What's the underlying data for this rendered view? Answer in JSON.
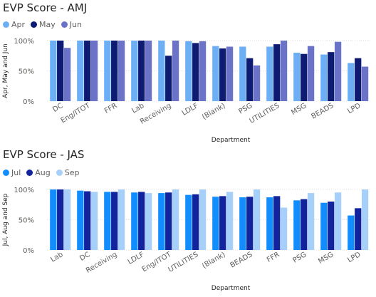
{
  "chart_data": [
    {
      "type": "bar",
      "title": "EVP Score - AMJ",
      "xlabel": "Department",
      "ylabel": "Apr, May and Jun",
      "ylim": [
        0,
        1
      ],
      "yticks": [
        "0%",
        "50%",
        "100%"
      ],
      "categories": [
        "DC",
        "Eng/ITOT",
        "FFR",
        "Lab",
        "Receiving",
        "LDLF",
        "(Blank)",
        "PSG",
        "UTILITIES",
        "MSG",
        "BEADS",
        "LPD"
      ],
      "series": [
        {
          "name": "Apr",
          "color": "#6CAFF5",
          "values": [
            1.0,
            1.0,
            1.0,
            1.0,
            1.0,
            0.99,
            0.91,
            0.9,
            0.9,
            0.8,
            0.77,
            0.63
          ]
        },
        {
          "name": "May",
          "color": "#0D1B73",
          "values": [
            1.0,
            1.0,
            1.0,
            1.0,
            0.75,
            0.96,
            0.87,
            0.71,
            0.94,
            0.78,
            0.81,
            0.71
          ]
        },
        {
          "name": "Jun",
          "color": "#6B73C8",
          "values": [
            0.88,
            1.0,
            1.0,
            1.0,
            1.0,
            0.99,
            0.9,
            0.59,
            1.0,
            0.91,
            0.98,
            0.57
          ]
        }
      ],
      "legend": "top-left",
      "grid": true
    },
    {
      "type": "bar",
      "title": "EVP Score - JAS",
      "xlabel": "Department",
      "ylabel": "Jul, Aug and Sep",
      "ylim": [
        0,
        1
      ],
      "yticks": [
        "0%",
        "50%",
        "100%"
      ],
      "categories": [
        "Lab",
        "DC",
        "Receiving",
        "LDLF",
        "Eng/ITOT",
        "UTILITIES",
        "(Blank)",
        "BEADS",
        "FFR",
        "PSG",
        "MSG",
        "LPD"
      ],
      "series": [
        {
          "name": "Jul",
          "color": "#118DFF",
          "values": [
            1.0,
            0.98,
            0.96,
            0.95,
            0.94,
            0.91,
            0.88,
            0.87,
            0.87,
            0.82,
            0.78,
            0.57
          ]
        },
        {
          "name": "Aug",
          "color": "#12239E",
          "values": [
            1.0,
            0.97,
            0.96,
            0.96,
            0.95,
            0.92,
            0.89,
            0.88,
            0.89,
            0.84,
            0.8,
            0.69
          ]
        },
        {
          "name": "Sep",
          "color": "#A6D0FA",
          "values": [
            1.0,
            0.96,
            1.0,
            0.94,
            1.0,
            1.0,
            0.96,
            1.0,
            0.7,
            0.94,
            0.95,
            1.0
          ]
        }
      ],
      "legend": "top-left",
      "grid": true
    }
  ]
}
